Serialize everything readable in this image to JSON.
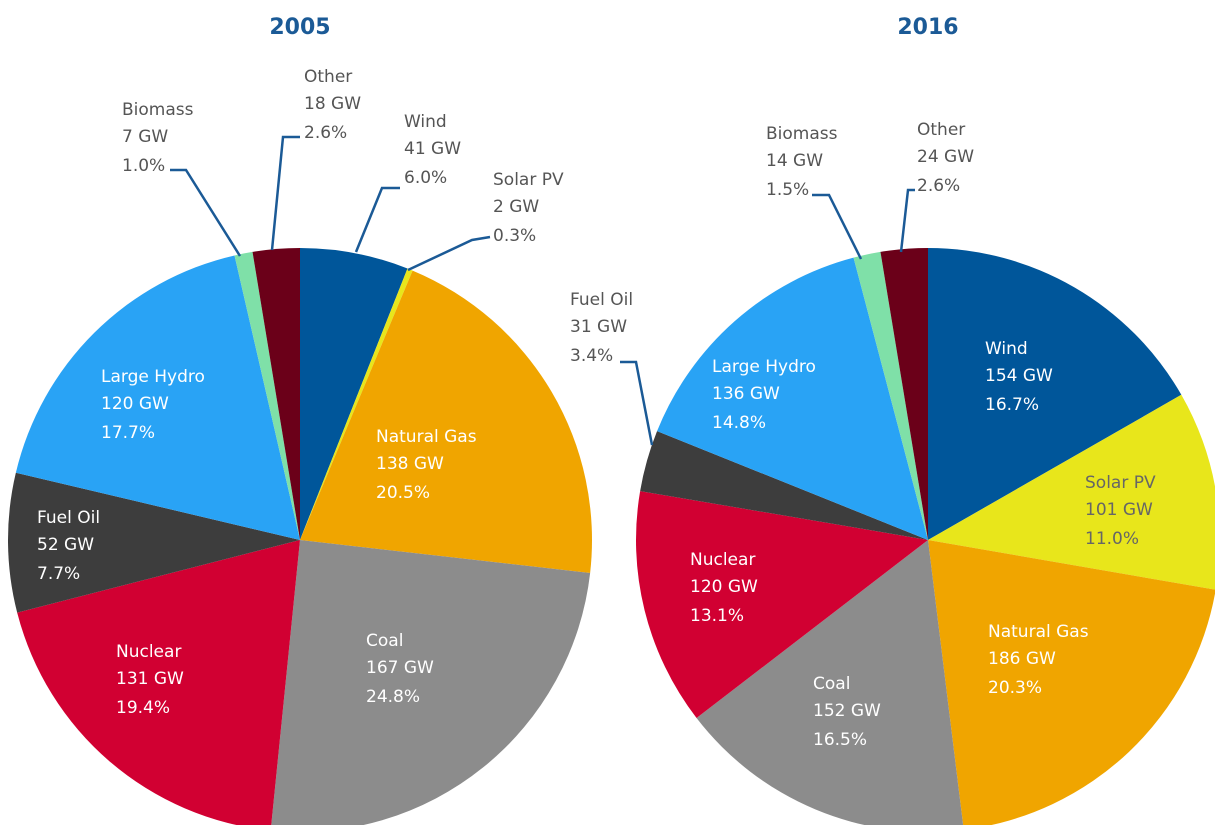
{
  "chart_data": [
    {
      "type": "pie",
      "title": "2005",
      "categories": [
        "Wind",
        "Solar PV",
        "Natural Gas",
        "Coal",
        "Nuclear",
        "Fuel Oil",
        "Large Hydro",
        "Biomass",
        "Other"
      ],
      "values": [
        41,
        2,
        138,
        167,
        131,
        52,
        120,
        7,
        18
      ],
      "value_labels": [
        "41 GW",
        "2 GW",
        "138 GW",
        "167 GW",
        "131 GW",
        "52 GW",
        "120 GW",
        "7 GW",
        "18 GW"
      ],
      "percents": [
        6.0,
        0.3,
        20.5,
        24.8,
        19.4,
        7.7,
        17.7,
        1.0,
        2.6
      ],
      "percent_labels": [
        "6.0%",
        "0.3%",
        "20.5%",
        "24.8%",
        "19.4%",
        "7.7%",
        "17.7%",
        "1.0%",
        "2.6%"
      ],
      "colors": [
        "#00569a",
        "#e8e61b",
        "#f0a500",
        "#8c8c8c",
        "#d10032",
        "#3d3d3d",
        "#29a3f5",
        "#7fe0a8",
        "#6b0019"
      ]
    },
    {
      "type": "pie",
      "title": "2016",
      "categories": [
        "Wind",
        "Solar PV",
        "Natural Gas",
        "Coal",
        "Nuclear",
        "Fuel Oil",
        "Large Hydro",
        "Biomass",
        "Other"
      ],
      "values": [
        154,
        101,
        186,
        152,
        120,
        31,
        136,
        14,
        24
      ],
      "value_labels": [
        "154 GW",
        "101 GW",
        "186 GW",
        "152 GW",
        "120 GW",
        "31 GW",
        "136 GW",
        "14 GW",
        "24 GW"
      ],
      "percents": [
        16.7,
        11.0,
        20.3,
        16.5,
        13.1,
        3.4,
        14.8,
        1.5,
        2.6
      ],
      "percent_labels": [
        "16.7%",
        "11.0%",
        "20.3%",
        "16.5%",
        "13.1%",
        "3.4%",
        "14.8%",
        "1.5%",
        "2.6%"
      ],
      "colors": [
        "#00569a",
        "#e8e61b",
        "#f0a500",
        "#8c8c8c",
        "#d10032",
        "#3d3d3d",
        "#29a3f5",
        "#7fe0a8",
        "#6b0019"
      ]
    }
  ]
}
